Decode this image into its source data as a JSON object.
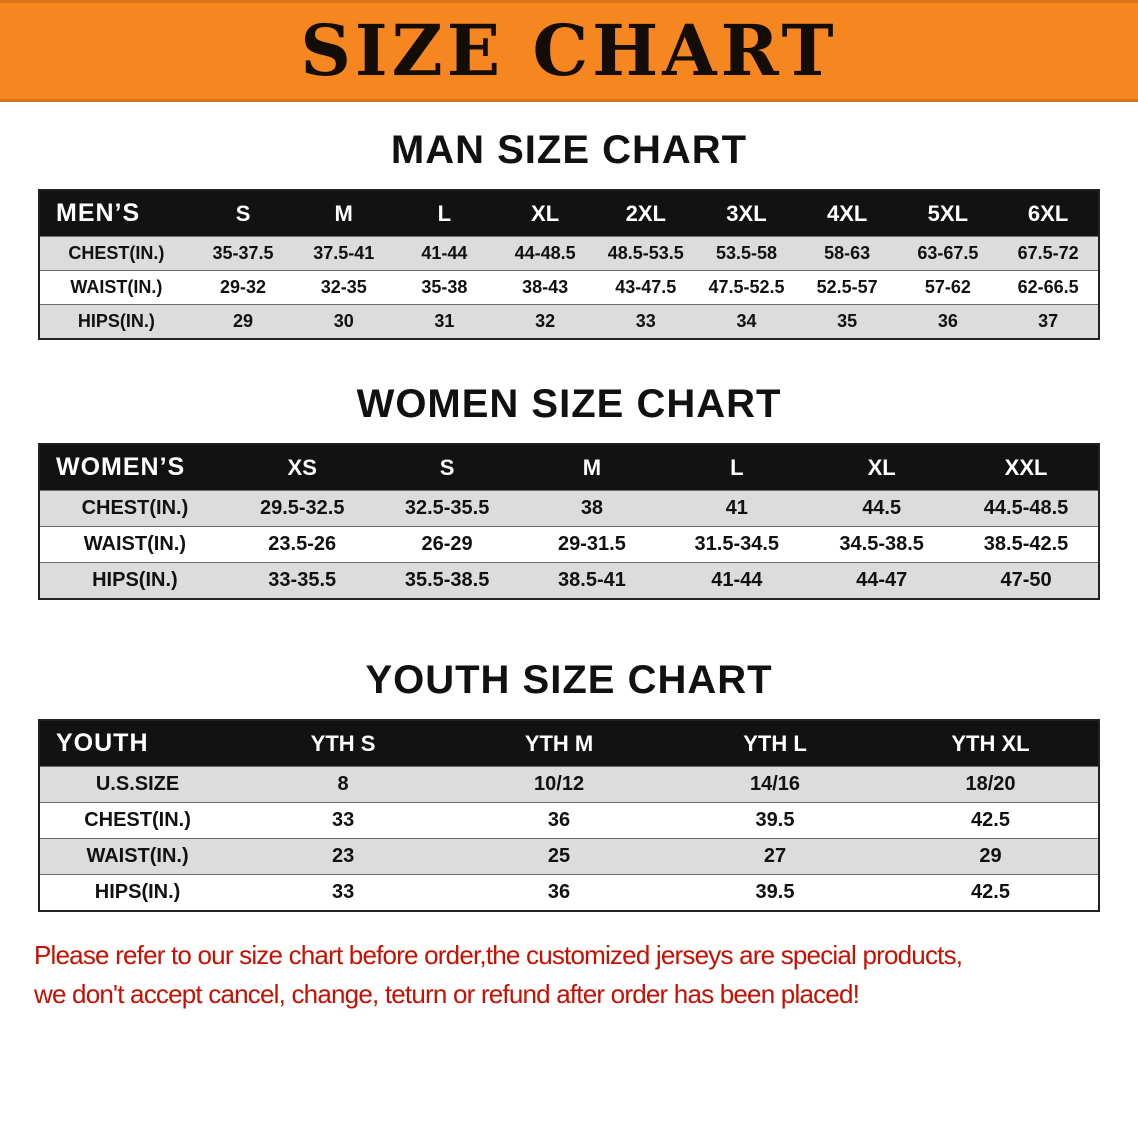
{
  "banner": {
    "title": "SIZE CHART"
  },
  "colors": {
    "banner_orange": "#F6861F",
    "table_header_black": "#121212",
    "row_shade_gray": "#DCDCDC",
    "notice_red": "#C70F02"
  },
  "chart_data": [
    {
      "type": "table",
      "title": "MAN SIZE CHART",
      "corner_label": "MEN’S",
      "columns": [
        "S",
        "M",
        "L",
        "XL",
        "2XL",
        "3XL",
        "4XL",
        "5XL",
        "6XL"
      ],
      "rows": [
        {
          "label": "CHEST(IN.)",
          "values": [
            "35-37.5",
            "37.5-41",
            "41-44",
            "44-48.5",
            "48.5-53.5",
            "53.5-58",
            "58-63",
            "63-67.5",
            "67.5-72"
          ]
        },
        {
          "label": "WAIST(IN.)",
          "values": [
            "29-32",
            "32-35",
            "35-38",
            "38-43",
            "43-47.5",
            "47.5-52.5",
            "52.5-57",
            "57-62",
            "62-66.5"
          ]
        },
        {
          "label": "HIPS(IN.)",
          "values": [
            "29",
            "30",
            "31",
            "32",
            "33",
            "34",
            "35",
            "36",
            "37"
          ]
        }
      ]
    },
    {
      "type": "table",
      "title": "WOMEN SIZE CHART",
      "corner_label": "WOMEN’S",
      "columns": [
        "XS",
        "S",
        "M",
        "L",
        "XL",
        "XXL"
      ],
      "rows": [
        {
          "label": "CHEST(IN.)",
          "values": [
            "29.5-32.5",
            "32.5-35.5",
            "38",
            "41",
            "44.5",
            "44.5-48.5"
          ]
        },
        {
          "label": "WAIST(IN.)",
          "values": [
            "23.5-26",
            "26-29",
            "29-31.5",
            "31.5-34.5",
            "34.5-38.5",
            "38.5-42.5"
          ]
        },
        {
          "label": "HIPS(IN.)",
          "values": [
            "33-35.5",
            "35.5-38.5",
            "38.5-41",
            "41-44",
            "44-47",
            "47-50"
          ]
        }
      ]
    },
    {
      "type": "table",
      "title": "YOUTH SIZE CHART",
      "corner_label": "YOUTH",
      "columns": [
        "YTH S",
        "YTH M",
        "YTH L",
        "YTH XL"
      ],
      "rows": [
        {
          "label": "U.S.SIZE",
          "values": [
            "8",
            "10/12",
            "14/16",
            "18/20"
          ]
        },
        {
          "label": "CHEST(IN.)",
          "values": [
            "33",
            "36",
            "39.5",
            "42.5"
          ]
        },
        {
          "label": "WAIST(IN.)",
          "values": [
            "23",
            "25",
            "27",
            "29"
          ]
        },
        {
          "label": "HIPS(IN.)",
          "values": [
            "33",
            "36",
            "39.5",
            "42.5"
          ]
        }
      ]
    }
  ],
  "notice": {
    "line1": "Please refer to our size chart before order,the customized jerseys are special products,",
    "line2": "we don't accept cancel, change, teturn or refund after order has been placed!"
  }
}
